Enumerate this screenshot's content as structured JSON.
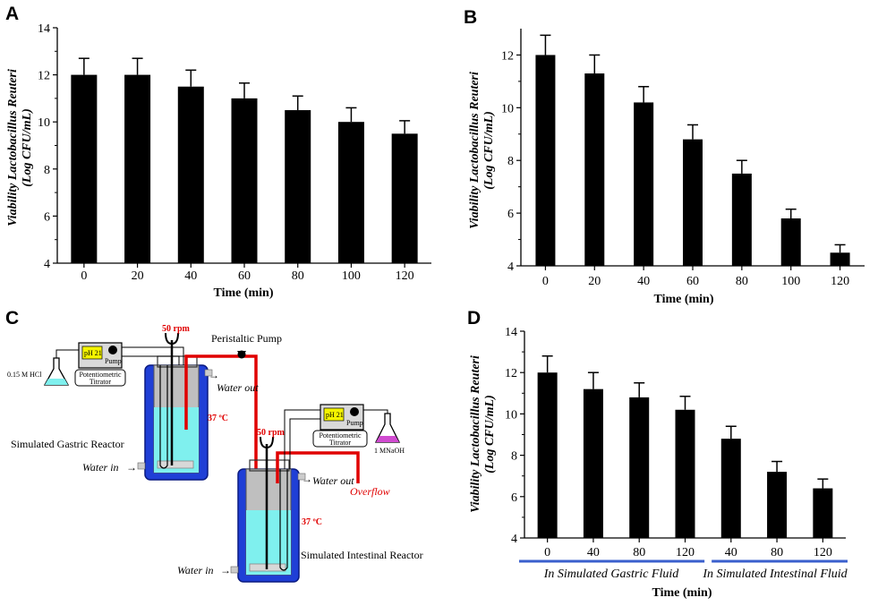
{
  "panels": {
    "a": "A",
    "b": "B",
    "c": "C",
    "d": "D"
  },
  "chart_data": [
    {
      "panel": "A",
      "type": "bar",
      "categories": [
        "0",
        "20",
        "40",
        "60",
        "80",
        "100",
        "120"
      ],
      "values": [
        12.0,
        12.0,
        11.5,
        11.0,
        10.5,
        10.0,
        9.5
      ],
      "errors": [
        0.7,
        0.7,
        0.7,
        0.65,
        0.6,
        0.6,
        0.55
      ],
      "xlabel": "Time (min)",
      "ylabel_line1": "Viability Lactobacillus Reuteri",
      "ylabel_line2": "(Log CFU/mL)",
      "ylim": [
        4,
        14
      ],
      "yticks": [
        4,
        6,
        8,
        10,
        12,
        14
      ],
      "bar_color": "#000000"
    },
    {
      "panel": "B",
      "type": "bar",
      "categories": [
        "0",
        "20",
        "40",
        "60",
        "80",
        "100",
        "120"
      ],
      "values": [
        12.0,
        11.3,
        10.2,
        8.8,
        7.5,
        5.8,
        4.5
      ],
      "errors": [
        0.75,
        0.7,
        0.6,
        0.55,
        0.5,
        0.35,
        0.3
      ],
      "xlabel": "Time (min)",
      "ylabel_line1": "Viability Lactobacillus Reuteri",
      "ylabel_line2": "(Log CFU/mL)",
      "ylim": [
        4,
        13
      ],
      "yticks": [
        4,
        6,
        8,
        10,
        12
      ],
      "bar_color": "#000000"
    },
    {
      "panel": "D",
      "type": "bar",
      "categories": [
        "0",
        "40",
        "80",
        "120",
        "40",
        "80",
        "120"
      ],
      "values": [
        12.0,
        11.2,
        10.8,
        10.2,
        8.8,
        7.2,
        6.4
      ],
      "errors": [
        0.8,
        0.8,
        0.7,
        0.65,
        0.6,
        0.5,
        0.45
      ],
      "xlabel": "Time (min)",
      "ylabel_line1": "Viability Lactobacillus Reuteri",
      "ylabel_line2": "(Log CFU/mL)",
      "ylim": [
        4,
        14
      ],
      "yticks": [
        4,
        6,
        8,
        10,
        12,
        14
      ],
      "groups": [
        "In Simulated Gastric Fluid",
        "In Simulated Intestinal Fluid"
      ],
      "group_line_color": "#3a5fcd",
      "bar_color": "#000000"
    }
  ],
  "diagram": {
    "hcl": "0.15 M HCl",
    "titrator1": "Potentiometric Titrator",
    "titrator1_lines": [
      "Potentiometric",
      "Titrator"
    ],
    "pump_small": "Pump",
    "rpm1": "50 rpm",
    "peristaltic_pump": "Peristaltic Pump",
    "water_out1": "Water out",
    "temp1": "37 ºC",
    "gastric_reactor": "Simulated Gastric Reactor",
    "water_in1": "Water in",
    "rpm2": "50 rpm",
    "titrator2_lines": [
      "Potentiometric",
      "Titrator"
    ],
    "naoh": "1 MNaOH",
    "water_out2": "Water out",
    "overflow": "Overflow",
    "temp2": "37 ºC",
    "intestinal_reactor": "Simulated Intestinal Reactor",
    "water_in2": "Water in",
    "display_text": "pH 21"
  }
}
